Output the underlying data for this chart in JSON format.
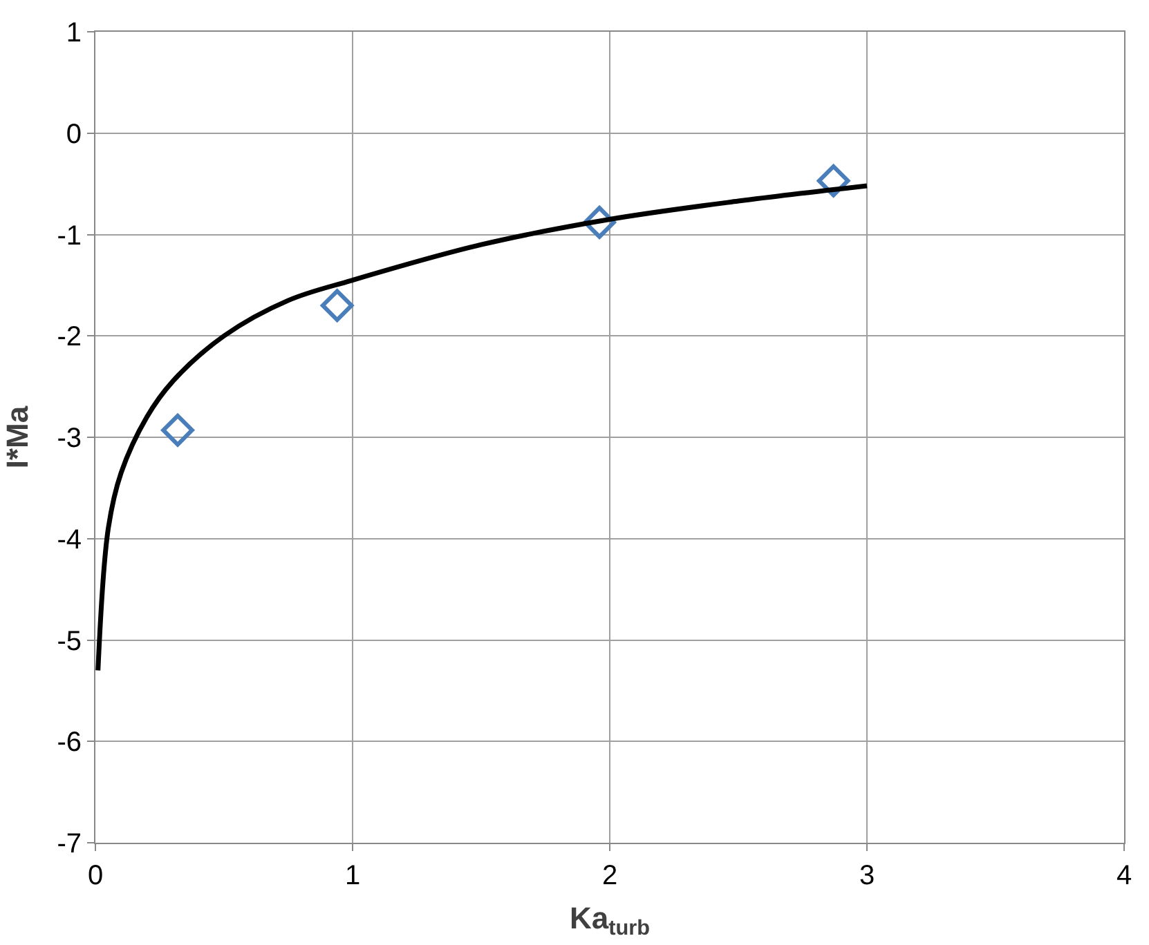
{
  "chart_data": {
    "type": "scatter",
    "xlabel": "Ka$_{turb}$",
    "ylabel": "I*Ma",
    "xlim": [
      0,
      4
    ],
    "ylim": [
      -7,
      1
    ],
    "xticks": [
      0,
      1,
      2,
      3,
      4
    ],
    "yticks": [
      -7,
      -6,
      -5,
      -4,
      -3,
      -2,
      -1,
      0,
      1
    ],
    "grid": true,
    "series": [
      {
        "marker": "diamond",
        "color": "#4a7ebb",
        "x": [
          0.32,
          0.94,
          1.96,
          2.87
        ],
        "values": [
          -2.93,
          -1.7,
          -0.88,
          -0.47
        ]
      },
      {
        "type": "line",
        "marker": "none",
        "line_style": "solid",
        "color": "#000000",
        "x": [
          0.01,
          0.05,
          0.1,
          0.2,
          0.3,
          0.5,
          0.75,
          1,
          1.5,
          2,
          2.5,
          3
        ],
        "values": [
          -5.3,
          -3.9,
          -3.35,
          -2.8,
          -2.45,
          -2.0,
          -1.65,
          -1.45,
          -1.1,
          -0.85,
          -0.67,
          -0.52
        ]
      }
    ]
  }
}
